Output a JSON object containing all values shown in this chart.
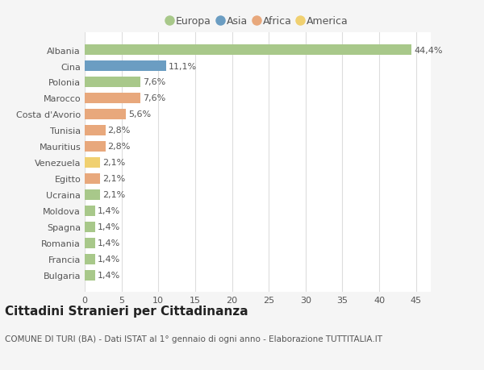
{
  "categories": [
    "Bulgaria",
    "Francia",
    "Romania",
    "Spagna",
    "Moldova",
    "Ucraina",
    "Egitto",
    "Venezuela",
    "Mauritius",
    "Tunisia",
    "Costa d'Avorio",
    "Marocco",
    "Polonia",
    "Cina",
    "Albania"
  ],
  "values": [
    1.4,
    1.4,
    1.4,
    1.4,
    1.4,
    2.1,
    2.1,
    2.1,
    2.8,
    2.8,
    5.6,
    7.6,
    7.6,
    11.1,
    44.4
  ],
  "labels": [
    "1,4%",
    "1,4%",
    "1,4%",
    "1,4%",
    "1,4%",
    "2,1%",
    "2,1%",
    "2,1%",
    "2,8%",
    "2,8%",
    "5,6%",
    "7,6%",
    "7,6%",
    "11,1%",
    "44,4%"
  ],
  "continents": [
    "Europa",
    "Europa",
    "Europa",
    "Europa",
    "Europa",
    "Europa",
    "Africa",
    "America",
    "Africa",
    "Africa",
    "Africa",
    "Africa",
    "Europa",
    "Asia",
    "Europa"
  ],
  "colors": {
    "Europa": "#a8c88a",
    "Asia": "#6b9dc2",
    "Africa": "#e8a87c",
    "America": "#f0d070"
  },
  "legend_order": [
    "Europa",
    "Asia",
    "Africa",
    "America"
  ],
  "title": "Cittadini Stranieri per Cittadinanza",
  "subtitle": "COMUNE DI TURI (BA) - Dati ISTAT al 1° gennaio di ogni anno - Elaborazione TUTTITALIA.IT",
  "xlim": [
    0,
    47
  ],
  "xticks": [
    0,
    5,
    10,
    15,
    20,
    25,
    30,
    35,
    40,
    45
  ],
  "plot_bg": "#ffffff",
  "fig_bg": "#f5f5f5",
  "grid_color": "#dddddd",
  "text_color": "#555555",
  "title_fontsize": 11,
  "subtitle_fontsize": 7.5,
  "tick_fontsize": 8,
  "label_fontsize": 8,
  "legend_fontsize": 9
}
